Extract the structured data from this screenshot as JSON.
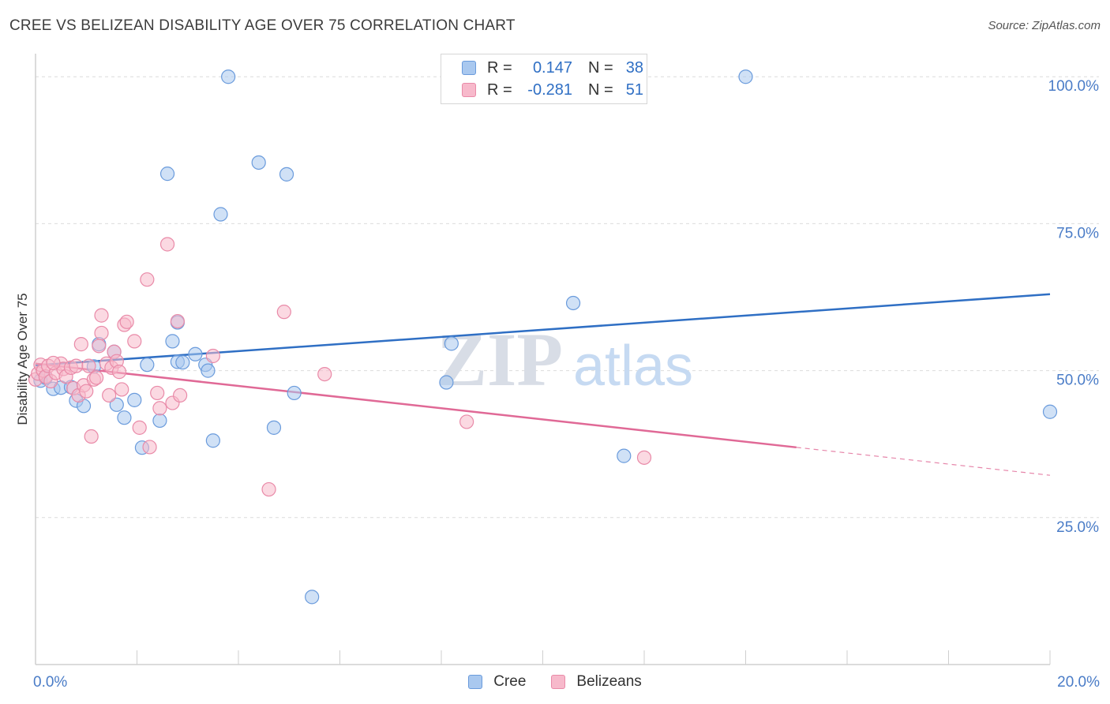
{
  "title": "CREE VS BELIZEAN DISABILITY AGE OVER 75 CORRELATION CHART",
  "source": "Source: ZipAtlas.com",
  "watermark": {
    "zip": "ZIP",
    "atlas": "atlas"
  },
  "colors": {
    "cree_fill": "#a9c8ef",
    "cree_stroke": "#6a9bdc",
    "cree_line": "#2f6fc4",
    "bel_fill": "#f7b9cb",
    "bel_stroke": "#e98aa8",
    "bel_line": "#e06996",
    "grid": "#dcdcdc",
    "axis_text": "#4a7cc7"
  },
  "legend": {
    "rows": [
      {
        "series": "Cree",
        "r_label": "R =",
        "r_value": "0.147",
        "n_label": "N =",
        "n_value": "38"
      },
      {
        "series": "Belizeans",
        "r_label": "R =",
        "r_value": "-0.281",
        "n_label": "N =",
        "n_value": "51"
      }
    ],
    "bottom": [
      "Cree",
      "Belizeans"
    ]
  },
  "chart_data": {
    "type": "scatter",
    "title": "CREE VS BELIZEAN DISABILITY AGE OVER 75 CORRELATION CHART",
    "xlabel": "",
    "ylabel": "Disability Age Over 75",
    "xlim": [
      0,
      20
    ],
    "ylim": [
      0,
      105
    ],
    "x_tick_labels": [
      {
        "value": 0,
        "label": "0.0%"
      },
      {
        "value": 20,
        "label": "20.0%"
      }
    ],
    "y_tick_labels": [
      {
        "value": 25,
        "label": "25.0%"
      },
      {
        "value": 50,
        "label": "50.0%"
      },
      {
        "value": 75,
        "label": "75.0%"
      },
      {
        "value": 100,
        "label": "100.0%"
      }
    ],
    "series": [
      {
        "name": "Cree",
        "r": 0.147,
        "n": 38,
        "trend": {
          "x0": 0,
          "y0": 50.9,
          "x1": 20,
          "y1": 63.0,
          "solid_until": 20
        },
        "points": [
          [
            0.1,
            48.3
          ],
          [
            0.2,
            48.8
          ],
          [
            0.35,
            46.9
          ],
          [
            0.5,
            47.1
          ],
          [
            0.7,
            47.2
          ],
          [
            0.8,
            44.9
          ],
          [
            0.95,
            44.0
          ],
          [
            1.15,
            50.7
          ],
          [
            1.25,
            54.5
          ],
          [
            1.55,
            53.2
          ],
          [
            1.6,
            44.2
          ],
          [
            1.75,
            42.0
          ],
          [
            1.95,
            45.0
          ],
          [
            2.1,
            36.9
          ],
          [
            2.2,
            51.0
          ],
          [
            2.45,
            41.5
          ],
          [
            2.6,
            83.5
          ],
          [
            2.7,
            55.0
          ],
          [
            2.8,
            51.5
          ],
          [
            2.8,
            58.2
          ],
          [
            2.9,
            51.4
          ],
          [
            3.15,
            52.8
          ],
          [
            3.35,
            51.0
          ],
          [
            3.4,
            50.0
          ],
          [
            3.5,
            38.1
          ],
          [
            3.65,
            76.6
          ],
          [
            3.8,
            100.0
          ],
          [
            4.4,
            85.4
          ],
          [
            4.7,
            40.3
          ],
          [
            4.95,
            83.4
          ],
          [
            5.1,
            46.2
          ],
          [
            5.45,
            11.5
          ],
          [
            8.1,
            48.0
          ],
          [
            8.2,
            54.6
          ],
          [
            10.6,
            61.5
          ],
          [
            11.6,
            35.5
          ],
          [
            14.0,
            100.0
          ],
          [
            20.0,
            43.0
          ]
        ]
      },
      {
        "name": "Belizeans",
        "r": -0.281,
        "n": 51,
        "trend": {
          "x0": 0,
          "y0": 51.2,
          "x1": 20,
          "y1": 32.2,
          "solid_until": 15.0
        },
        "points": [
          [
            0.0,
            48.5
          ],
          [
            0.05,
            49.5
          ],
          [
            0.1,
            51.0
          ],
          [
            0.15,
            50.0
          ],
          [
            0.2,
            49.0
          ],
          [
            0.25,
            50.8
          ],
          [
            0.3,
            48.2
          ],
          [
            0.4,
            49.6
          ],
          [
            0.5,
            51.2
          ],
          [
            0.55,
            50.3
          ],
          [
            0.6,
            49.0
          ],
          [
            0.7,
            50.5
          ],
          [
            0.75,
            47.0
          ],
          [
            0.8,
            50.8
          ],
          [
            0.85,
            45.8
          ],
          [
            0.9,
            54.5
          ],
          [
            0.95,
            47.5
          ],
          [
            1.0,
            46.5
          ],
          [
            1.05,
            50.8
          ],
          [
            1.1,
            38.8
          ],
          [
            1.15,
            48.5
          ],
          [
            1.2,
            48.8
          ],
          [
            1.25,
            54.2
          ],
          [
            1.3,
            56.4
          ],
          [
            1.3,
            59.4
          ],
          [
            1.4,
            51.2
          ],
          [
            1.45,
            45.8
          ],
          [
            1.5,
            50.5
          ],
          [
            1.55,
            53.2
          ],
          [
            1.6,
            51.6
          ],
          [
            1.65,
            49.8
          ],
          [
            1.7,
            46.8
          ],
          [
            1.75,
            57.8
          ],
          [
            1.8,
            58.3
          ],
          [
            1.95,
            55.0
          ],
          [
            2.05,
            40.3
          ],
          [
            2.2,
            65.5
          ],
          [
            2.25,
            37.0
          ],
          [
            2.4,
            46.2
          ],
          [
            2.45,
            43.6
          ],
          [
            2.6,
            71.5
          ],
          [
            2.7,
            44.5
          ],
          [
            2.8,
            58.4
          ],
          [
            2.85,
            45.8
          ],
          [
            3.5,
            52.5
          ],
          [
            4.6,
            29.8
          ],
          [
            4.9,
            60.0
          ],
          [
            5.7,
            49.4
          ],
          [
            8.5,
            41.3
          ],
          [
            12.0,
            35.2
          ],
          [
            0.35,
            51.3
          ]
        ]
      }
    ]
  }
}
